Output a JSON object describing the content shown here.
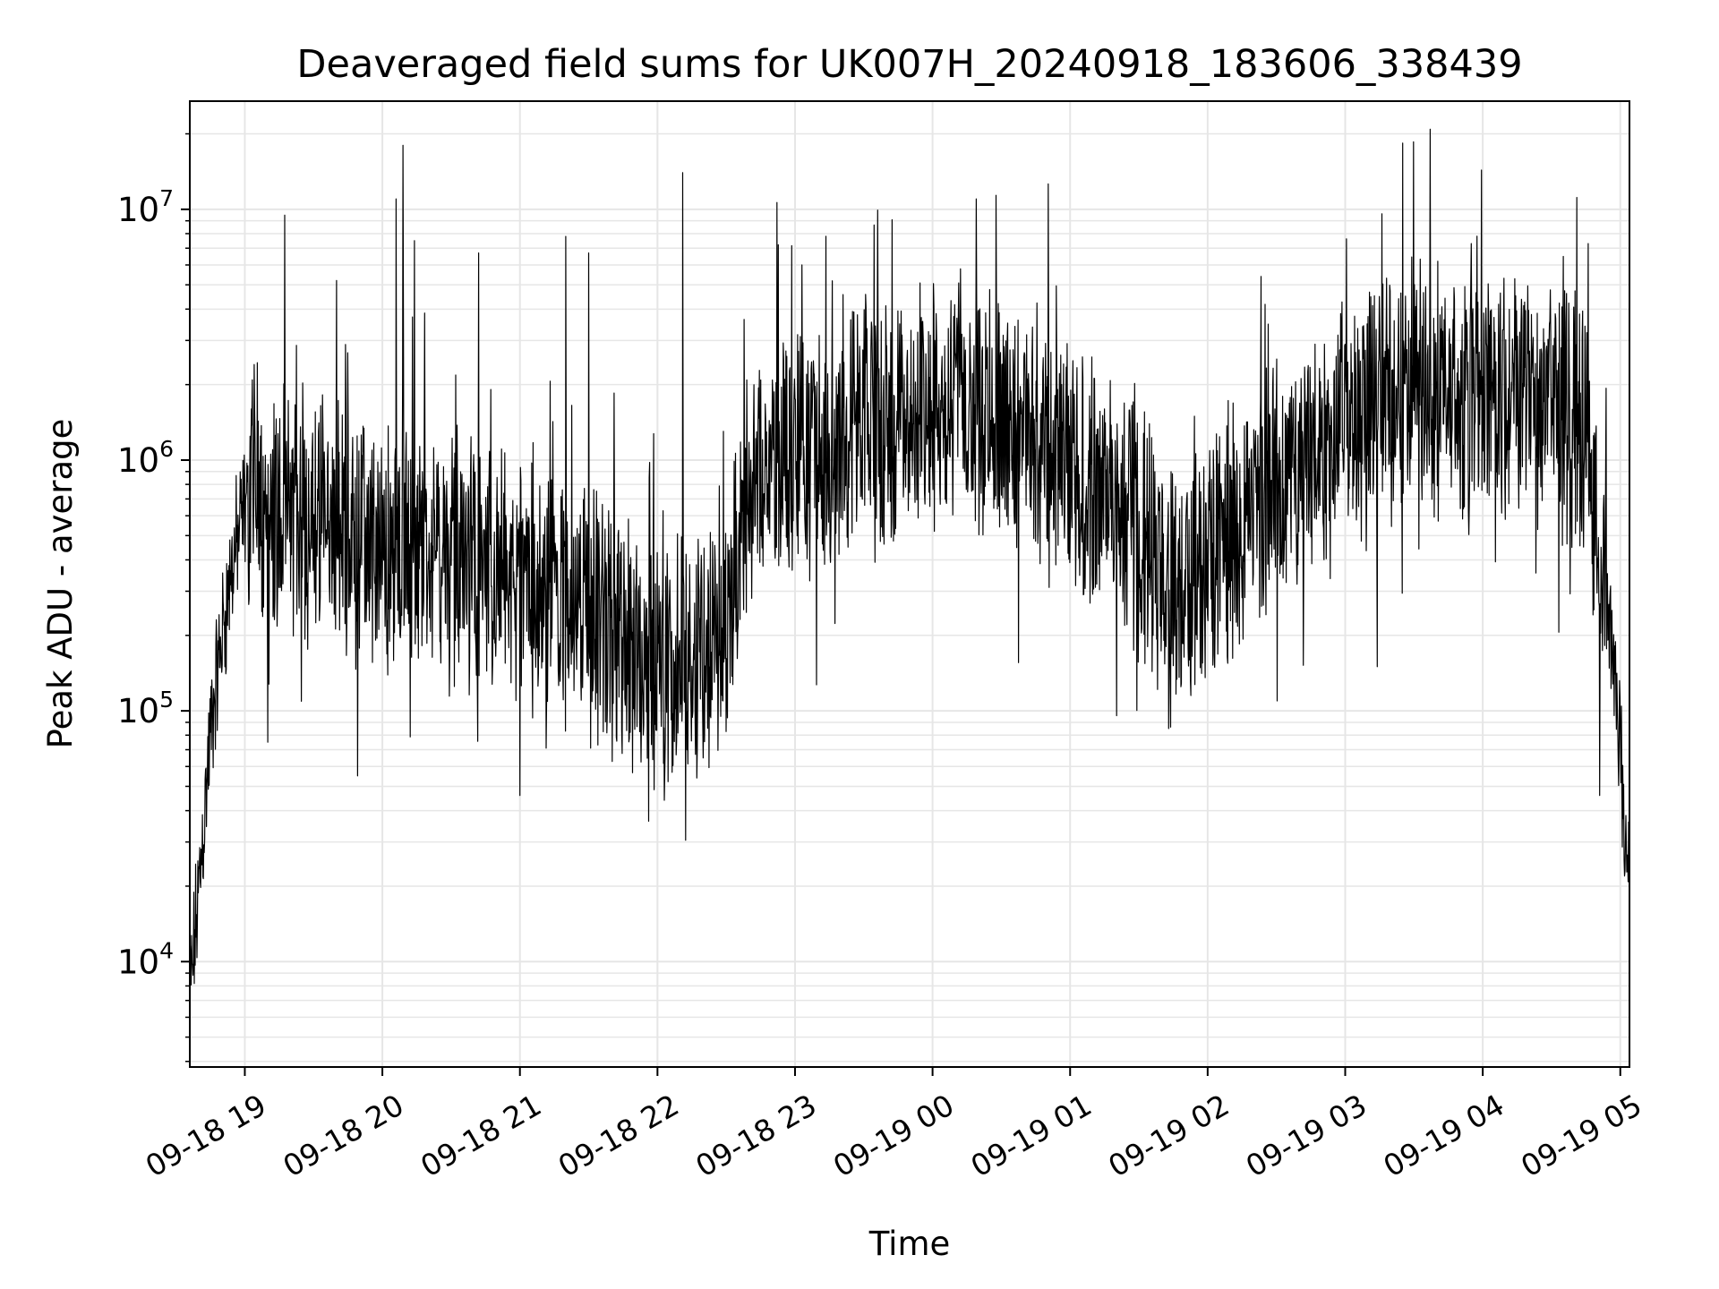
{
  "chart_data": {
    "type": "line",
    "title": "Deaveraged field sums for UK007H_20240918_183606_338439",
    "xlabel": "Time",
    "ylabel": "Peak ADU - average",
    "y_scale": "log",
    "ylim": [
      3800,
      27000000
    ],
    "xlim": [
      "2024-09-18 18:36",
      "2024-09-19 05:04"
    ],
    "x_ticks": [
      "09-18 19",
      "09-18 20",
      "09-18 21",
      "09-18 22",
      "09-18 23",
      "09-19 00",
      "09-19 01",
      "09-19 02",
      "09-19 03",
      "09-19 04",
      "09-19 05"
    ],
    "y_ticks": [
      {
        "value": 10000,
        "base": "10",
        "exp": "4"
      },
      {
        "value": 100000,
        "base": "10",
        "exp": "5"
      },
      {
        "value": 1000000,
        "base": "10",
        "exp": "6"
      },
      {
        "value": 10000000,
        "base": "10",
        "exp": "7"
      }
    ],
    "grid": true,
    "line_color": "#000000",
    "grid_color": "#e6e6e6",
    "series": [
      {
        "x": [
          "2024-09-18 18:36",
          "2024-09-18 18:39",
          "2024-09-18 18:42",
          "2024-09-18 18:45",
          "2024-09-18 18:50",
          "2024-09-18 18:55",
          "2024-09-18 19:00",
          "2024-09-18 19:05",
          "2024-09-18 19:15",
          "2024-09-18 19:30",
          "2024-09-18 19:45",
          "2024-09-18 20:00",
          "2024-09-18 20:30",
          "2024-09-18 21:00",
          "2024-09-18 21:30",
          "2024-09-18 22:00",
          "2024-09-18 22:30",
          "2024-09-18 22:40",
          "2024-09-18 23:00",
          "2024-09-18 23:30",
          "2024-09-19 00:00",
          "2024-09-19 00:15",
          "2024-09-19 00:30",
          "2024-09-19 01:00",
          "2024-09-19 01:30",
          "2024-09-19 01:45",
          "2024-09-19 02:00",
          "2024-09-19 02:30",
          "2024-09-19 03:00",
          "2024-09-19 03:30",
          "2024-09-19 04:00",
          "2024-09-19 04:30",
          "2024-09-19 04:45",
          "2024-09-19 04:52",
          "2024-09-19 04:58",
          "2024-09-19 05:03"
        ],
        "values": [
          7000,
          15000,
          35000,
          80000,
          200000,
          400000,
          650000,
          800000,
          600000,
          550000,
          500000,
          420000,
          400000,
          320000,
          230000,
          160000,
          180000,
          800000,
          1100000,
          1300000,
          1700000,
          1900000,
          1500000,
          900000,
          550000,
          280000,
          420000,
          750000,
          1500000,
          2000000,
          1800000,
          1700000,
          1300000,
          400000,
          120000,
          25000
        ]
      }
    ],
    "spikes": [
      {
        "x": "2024-09-18 19:40",
        "value": 5200000
      },
      {
        "x": "2024-09-18 20:06",
        "value": 11000000
      },
      {
        "x": "2024-09-18 20:09",
        "value": 18000000
      },
      {
        "x": "2024-09-18 20:14",
        "value": 7500000
      },
      {
        "x": "2024-09-18 20:42",
        "value": 6700000
      },
      {
        "x": "2024-09-18 21:20",
        "value": 7800000
      },
      {
        "x": "2024-09-18 21:30",
        "value": 6700000
      },
      {
        "x": "2024-09-18 22:11",
        "value": 14000000
      },
      {
        "x": "2024-09-18 23:03",
        "value": 6000000
      },
      {
        "x": "2024-09-19 03:16",
        "value": 9600000
      },
      {
        "x": "2024-09-19 03:55",
        "value": 7300000
      },
      {
        "x": "2024-09-19 04:46",
        "value": 7300000
      }
    ],
    "dips": [
      {
        "x": "2024-09-18 19:10",
        "value": 75000
      },
      {
        "x": "2024-09-18 21:00",
        "value": 46000
      },
      {
        "x": "2024-09-18 22:03",
        "value": 44000
      },
      {
        "x": "2024-09-19 01:43",
        "value": 85000
      },
      {
        "x": "2024-09-19 03:14",
        "value": 150000
      },
      {
        "x": "2024-09-19 04:51",
        "value": 46000
      }
    ]
  }
}
